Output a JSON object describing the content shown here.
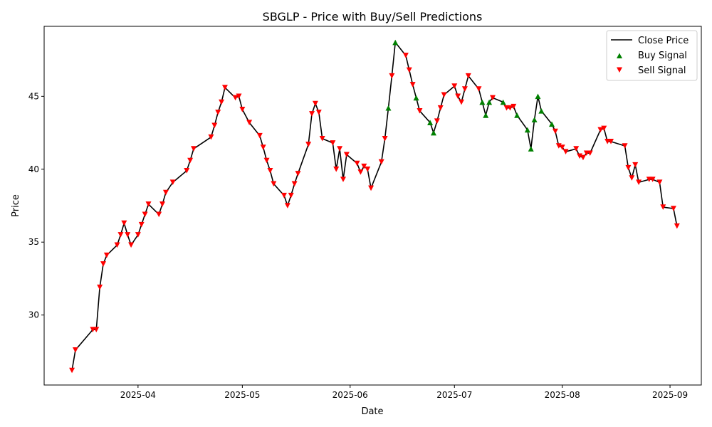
{
  "chart_data": {
    "type": "line",
    "title": "SBGLP - Price with Buy/Sell Predictions",
    "xlabel": "Date",
    "ylabel": "Price",
    "xlim": [
      "2025-03-05",
      "2025-09-10"
    ],
    "ylim": [
      25.2,
      49.8
    ],
    "x_ticks": [
      {
        "date": "2025-04-01",
        "label": "2025-04"
      },
      {
        "date": "2025-05-01",
        "label": "2025-05"
      },
      {
        "date": "2025-06-01",
        "label": "2025-06"
      },
      {
        "date": "2025-07-01",
        "label": "2025-07"
      },
      {
        "date": "2025-08-01",
        "label": "2025-08"
      },
      {
        "date": "2025-09-01",
        "label": "2025-09"
      }
    ],
    "y_ticks": [
      30,
      35,
      40,
      45
    ],
    "grid": false,
    "legend_position": "top-right",
    "legend": [
      "Close Price",
      "Buy Signal",
      "Sell Signal"
    ],
    "colors": {
      "close": "#000000",
      "buy": "#008000",
      "sell": "#ff0000"
    },
    "series": [
      {
        "name": "Close Price",
        "kind": "line",
        "points": [
          [
            "2025-03-13",
            26.2
          ],
          [
            "2025-03-14",
            27.6
          ],
          [
            "2025-03-19",
            29.0
          ],
          [
            "2025-03-20",
            29.0
          ],
          [
            "2025-03-21",
            31.9
          ],
          [
            "2025-03-22",
            33.5
          ],
          [
            "2025-03-23",
            34.1
          ],
          [
            "2025-03-26",
            34.8
          ],
          [
            "2025-03-27",
            35.5
          ],
          [
            "2025-03-28",
            36.3
          ],
          [
            "2025-03-29",
            35.5
          ],
          [
            "2025-03-30",
            34.8
          ],
          [
            "2025-04-01",
            35.5
          ],
          [
            "2025-04-02",
            36.2
          ],
          [
            "2025-04-03",
            36.9
          ],
          [
            "2025-04-04",
            37.6
          ],
          [
            "2025-04-07",
            36.9
          ],
          [
            "2025-04-08",
            37.6
          ],
          [
            "2025-04-09",
            38.4
          ],
          [
            "2025-04-11",
            39.1
          ],
          [
            "2025-04-15",
            39.9
          ],
          [
            "2025-04-16",
            40.6
          ],
          [
            "2025-04-17",
            41.4
          ],
          [
            "2025-04-22",
            42.2
          ],
          [
            "2025-04-23",
            43.0
          ],
          [
            "2025-04-24",
            43.9
          ],
          [
            "2025-04-25",
            44.6
          ],
          [
            "2025-04-26",
            45.6
          ],
          [
            "2025-04-29",
            44.9
          ],
          [
            "2025-04-30",
            45.0
          ],
          [
            "2025-05-01",
            44.1
          ],
          [
            "2025-05-03",
            43.2
          ],
          [
            "2025-05-06",
            42.3
          ],
          [
            "2025-05-07",
            41.5
          ],
          [
            "2025-05-08",
            40.6
          ],
          [
            "2025-05-09",
            39.9
          ],
          [
            "2025-05-10",
            39.0
          ],
          [
            "2025-05-13",
            38.2
          ],
          [
            "2025-05-14",
            37.5
          ],
          [
            "2025-05-15",
            38.2
          ],
          [
            "2025-05-16",
            39.0
          ],
          [
            "2025-05-17",
            39.7
          ],
          [
            "2025-05-20",
            41.7
          ],
          [
            "2025-05-21",
            43.8
          ],
          [
            "2025-05-22",
            44.5
          ],
          [
            "2025-05-23",
            43.9
          ],
          [
            "2025-05-24",
            42.1
          ],
          [
            "2025-05-27",
            41.8
          ],
          [
            "2025-05-28",
            40.0
          ],
          [
            "2025-05-29",
            41.4
          ],
          [
            "2025-05-30",
            39.3
          ],
          [
            "2025-05-31",
            41.0
          ],
          [
            "2025-06-03",
            40.4
          ],
          [
            "2025-06-04",
            39.8
          ],
          [
            "2025-06-05",
            40.2
          ],
          [
            "2025-06-06",
            40.0
          ],
          [
            "2025-06-07",
            38.7
          ],
          [
            "2025-06-10",
            40.5
          ],
          [
            "2025-06-11",
            42.1
          ],
          [
            "2025-06-12",
            44.2
          ],
          [
            "2025-06-13",
            46.4
          ],
          [
            "2025-06-14",
            48.7
          ],
          [
            "2025-06-17",
            47.8
          ],
          [
            "2025-06-18",
            46.8
          ],
          [
            "2025-06-19",
            45.8
          ],
          [
            "2025-06-20",
            44.9
          ],
          [
            "2025-06-21",
            44.0
          ],
          [
            "2025-06-24",
            43.2
          ],
          [
            "2025-06-25",
            42.5
          ],
          [
            "2025-06-26",
            43.3
          ],
          [
            "2025-06-27",
            44.2
          ],
          [
            "2025-06-28",
            45.1
          ],
          [
            "2025-07-01",
            45.7
          ],
          [
            "2025-07-02",
            45.0
          ],
          [
            "2025-07-03",
            44.6
          ],
          [
            "2025-07-04",
            45.5
          ],
          [
            "2025-07-05",
            46.4
          ],
          [
            "2025-07-08",
            45.5
          ],
          [
            "2025-07-09",
            44.6
          ],
          [
            "2025-07-10",
            43.7
          ],
          [
            "2025-07-11",
            44.6
          ],
          [
            "2025-07-12",
            44.9
          ],
          [
            "2025-07-15",
            44.6
          ],
          [
            "2025-07-16",
            44.2
          ],
          [
            "2025-07-17",
            44.2
          ],
          [
            "2025-07-18",
            44.3
          ],
          [
            "2025-07-19",
            43.7
          ],
          [
            "2025-07-22",
            42.7
          ],
          [
            "2025-07-23",
            41.4
          ],
          [
            "2025-07-24",
            43.4
          ],
          [
            "2025-07-25",
            45.0
          ],
          [
            "2025-07-26",
            44.0
          ],
          [
            "2025-07-29",
            43.1
          ],
          [
            "2025-07-30",
            42.6
          ],
          [
            "2025-07-31",
            41.6
          ],
          [
            "2025-08-01",
            41.5
          ],
          [
            "2025-08-02",
            41.2
          ],
          [
            "2025-08-05",
            41.4
          ],
          [
            "2025-08-06",
            40.9
          ],
          [
            "2025-08-07",
            40.8
          ],
          [
            "2025-08-08",
            41.1
          ],
          [
            "2025-08-09",
            41.1
          ],
          [
            "2025-08-12",
            42.7
          ],
          [
            "2025-08-13",
            42.8
          ],
          [
            "2025-08-14",
            41.9
          ],
          [
            "2025-08-15",
            41.9
          ],
          [
            "2025-08-19",
            41.6
          ],
          [
            "2025-08-20",
            40.1
          ],
          [
            "2025-08-21",
            39.4
          ],
          [
            "2025-08-22",
            40.3
          ],
          [
            "2025-08-23",
            39.1
          ],
          [
            "2025-08-26",
            39.3
          ],
          [
            "2025-08-27",
            39.3
          ],
          [
            "2025-08-29",
            39.1
          ],
          [
            "2025-08-30",
            37.4
          ],
          [
            "2025-09-02",
            37.3
          ],
          [
            "2025-09-03",
            36.1
          ]
        ]
      },
      {
        "name": "Buy Signal",
        "kind": "scatter",
        "marker": "triangle-up",
        "points": [
          [
            "2025-06-12",
            44.2
          ],
          [
            "2025-06-14",
            48.7
          ],
          [
            "2025-06-20",
            44.9
          ],
          [
            "2025-06-24",
            43.2
          ],
          [
            "2025-06-25",
            42.5
          ],
          [
            "2025-07-09",
            44.6
          ],
          [
            "2025-07-10",
            43.7
          ],
          [
            "2025-07-11",
            44.6
          ],
          [
            "2025-07-15",
            44.6
          ],
          [
            "2025-07-19",
            43.7
          ],
          [
            "2025-07-22",
            42.7
          ],
          [
            "2025-07-23",
            41.4
          ],
          [
            "2025-07-24",
            43.4
          ],
          [
            "2025-07-25",
            45.0
          ],
          [
            "2025-07-26",
            44.0
          ],
          [
            "2025-07-29",
            43.1
          ]
        ]
      },
      {
        "name": "Sell Signal",
        "kind": "scatter",
        "marker": "triangle-down",
        "points": [
          [
            "2025-03-13",
            26.2
          ],
          [
            "2025-03-14",
            27.6
          ],
          [
            "2025-03-19",
            29.0
          ],
          [
            "2025-03-20",
            29.0
          ],
          [
            "2025-03-21",
            31.9
          ],
          [
            "2025-03-22",
            33.5
          ],
          [
            "2025-03-23",
            34.1
          ],
          [
            "2025-03-26",
            34.8
          ],
          [
            "2025-03-27",
            35.5
          ],
          [
            "2025-03-28",
            36.3
          ],
          [
            "2025-03-29",
            35.5
          ],
          [
            "2025-03-30",
            34.8
          ],
          [
            "2025-04-01",
            35.5
          ],
          [
            "2025-04-02",
            36.2
          ],
          [
            "2025-04-03",
            36.9
          ],
          [
            "2025-04-04",
            37.6
          ],
          [
            "2025-04-07",
            36.9
          ],
          [
            "2025-04-08",
            37.6
          ],
          [
            "2025-04-09",
            38.4
          ],
          [
            "2025-04-11",
            39.1
          ],
          [
            "2025-04-15",
            39.9
          ],
          [
            "2025-04-16",
            40.6
          ],
          [
            "2025-04-17",
            41.4
          ],
          [
            "2025-04-22",
            42.2
          ],
          [
            "2025-04-23",
            43.0
          ],
          [
            "2025-04-24",
            43.9
          ],
          [
            "2025-04-25",
            44.6
          ],
          [
            "2025-04-26",
            45.6
          ],
          [
            "2025-04-29",
            44.9
          ],
          [
            "2025-04-30",
            45.0
          ],
          [
            "2025-05-01",
            44.1
          ],
          [
            "2025-05-03",
            43.2
          ],
          [
            "2025-05-06",
            42.3
          ],
          [
            "2025-05-07",
            41.5
          ],
          [
            "2025-05-08",
            40.6
          ],
          [
            "2025-05-09",
            39.9
          ],
          [
            "2025-05-10",
            39.0
          ],
          [
            "2025-05-13",
            38.2
          ],
          [
            "2025-05-14",
            37.5
          ],
          [
            "2025-05-15",
            38.2
          ],
          [
            "2025-05-16",
            39.0
          ],
          [
            "2025-05-17",
            39.7
          ],
          [
            "2025-05-20",
            41.7
          ],
          [
            "2025-05-21",
            43.8
          ],
          [
            "2025-05-22",
            44.5
          ],
          [
            "2025-05-23",
            43.9
          ],
          [
            "2025-05-24",
            42.1
          ],
          [
            "2025-05-27",
            41.8
          ],
          [
            "2025-05-28",
            40.0
          ],
          [
            "2025-05-29",
            41.4
          ],
          [
            "2025-05-30",
            39.3
          ],
          [
            "2025-05-31",
            41.0
          ],
          [
            "2025-06-03",
            40.4
          ],
          [
            "2025-06-04",
            39.8
          ],
          [
            "2025-06-05",
            40.2
          ],
          [
            "2025-06-06",
            40.0
          ],
          [
            "2025-06-07",
            38.7
          ],
          [
            "2025-06-10",
            40.5
          ],
          [
            "2025-06-11",
            42.1
          ],
          [
            "2025-06-13",
            46.4
          ],
          [
            "2025-06-17",
            47.8
          ],
          [
            "2025-06-18",
            46.8
          ],
          [
            "2025-06-19",
            45.8
          ],
          [
            "2025-06-21",
            44.0
          ],
          [
            "2025-06-26",
            43.3
          ],
          [
            "2025-06-27",
            44.2
          ],
          [
            "2025-06-28",
            45.1
          ],
          [
            "2025-07-01",
            45.7
          ],
          [
            "2025-07-02",
            45.0
          ],
          [
            "2025-07-03",
            44.6
          ],
          [
            "2025-07-04",
            45.5
          ],
          [
            "2025-07-05",
            46.4
          ],
          [
            "2025-07-08",
            45.5
          ],
          [
            "2025-07-12",
            44.9
          ],
          [
            "2025-07-16",
            44.2
          ],
          [
            "2025-07-17",
            44.2
          ],
          [
            "2025-07-18",
            44.3
          ],
          [
            "2025-07-30",
            42.6
          ],
          [
            "2025-07-31",
            41.6
          ],
          [
            "2025-08-01",
            41.5
          ],
          [
            "2025-08-02",
            41.2
          ],
          [
            "2025-08-05",
            41.4
          ],
          [
            "2025-08-06",
            40.9
          ],
          [
            "2025-08-07",
            40.8
          ],
          [
            "2025-08-08",
            41.1
          ],
          [
            "2025-08-09",
            41.1
          ],
          [
            "2025-08-12",
            42.7
          ],
          [
            "2025-08-13",
            42.8
          ],
          [
            "2025-08-14",
            41.9
          ],
          [
            "2025-08-15",
            41.9
          ],
          [
            "2025-08-19",
            41.6
          ],
          [
            "2025-08-20",
            40.1
          ],
          [
            "2025-08-21",
            39.4
          ],
          [
            "2025-08-22",
            40.3
          ],
          [
            "2025-08-23",
            39.1
          ],
          [
            "2025-08-26",
            39.3
          ],
          [
            "2025-08-27",
            39.3
          ],
          [
            "2025-08-29",
            39.1
          ],
          [
            "2025-08-30",
            37.4
          ],
          [
            "2025-09-02",
            37.3
          ],
          [
            "2025-09-03",
            36.1
          ]
        ]
      }
    ]
  }
}
